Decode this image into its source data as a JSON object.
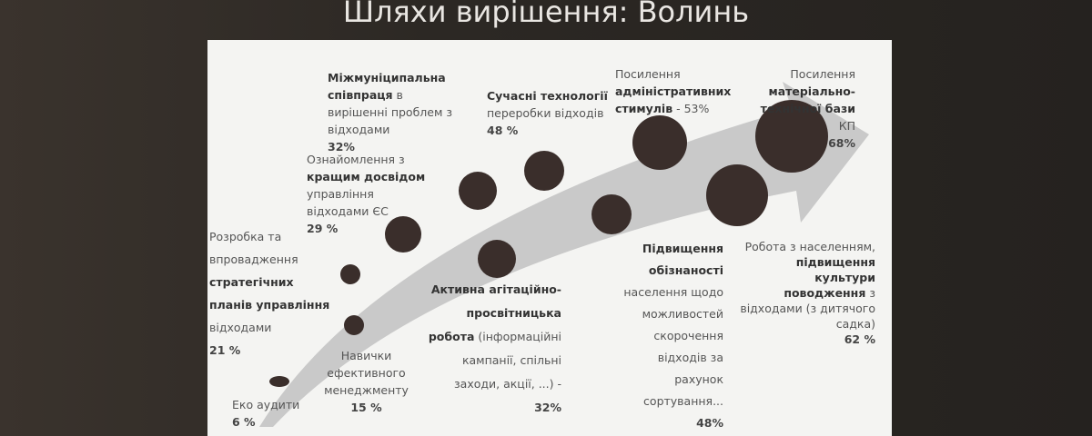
{
  "title": "Шляхи вирішення: Волинь",
  "items": [
    {
      "parts": [
        "Еко аудити"
      ],
      "percent": "6 %"
    },
    {
      "parts": [
        "Навички ефективного менеджменту"
      ],
      "percent": "15 %"
    },
    {
      "parts": [
        "Розробка та впровадження",
        "стратегічних планів управління",
        "відходами"
      ],
      "percent": "21 %"
    },
    {
      "parts": [
        "Ознайомлення з",
        "кращим досвідом",
        "управління відходами ЄС"
      ],
      "percent": "29 %"
    },
    {
      "parts": [
        "Міжмуніципальна співпраця",
        "в вирішенні проблем з відходами"
      ],
      "percent": "32%"
    },
    {
      "parts": [
        "Сучасні технології",
        "переробки відходів"
      ],
      "percent": "48 %"
    },
    {
      "parts": [
        "Активна агітаційно-просвітницька робота",
        "(інформаційні кампанії, спільні заходи, акції, ...) -"
      ],
      "percent": "32%"
    },
    {
      "parts": [
        "Підвищення обізнаності",
        "населення щодо можливостей скорочення відходів за рахунок сортування..."
      ],
      "percent": "48%"
    },
    {
      "parts": [
        "Посилення",
        "адміністративних стимулів"
      ],
      "percent": "- 53%"
    },
    {
      "parts": [
        "Посилення",
        "матеріально-технічної бази",
        "КП"
      ],
      "percent": "68%"
    },
    {
      "parts": [
        "Робота з населенням,",
        "підвищення культури поводження",
        "з відходами (з дитячого садка)"
      ],
      "percent": "62 %"
    }
  ]
}
